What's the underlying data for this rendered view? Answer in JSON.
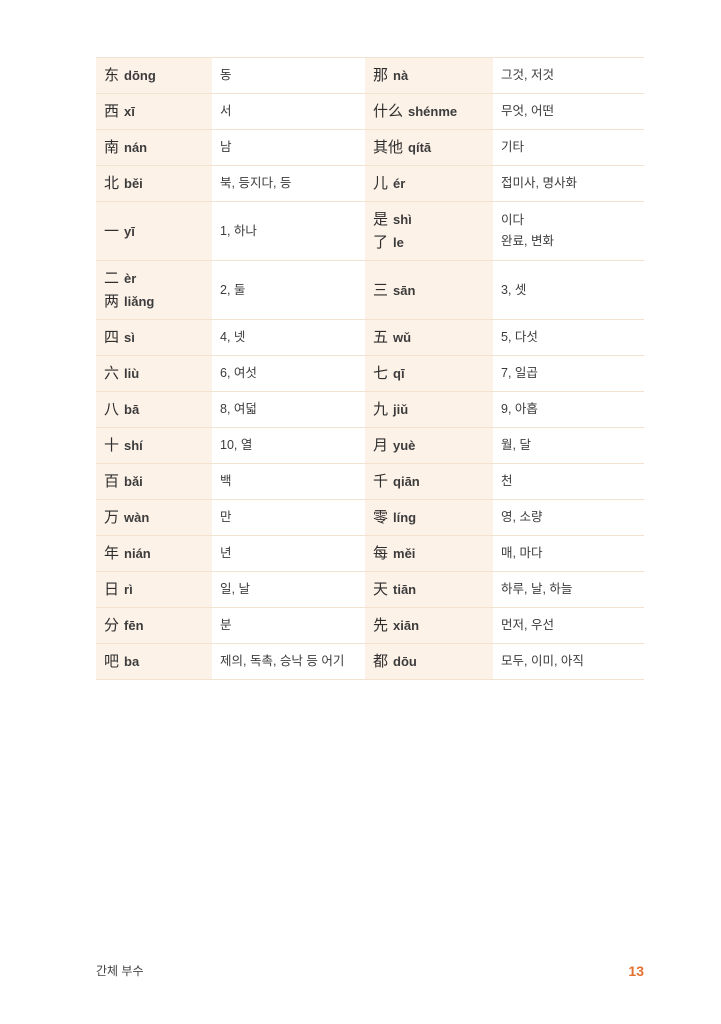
{
  "footer": {
    "left_text": "간체 부수",
    "page_number": "13"
  },
  "colors": {
    "hanzi_cell_bg": "#fdf2e8",
    "row_border": "#f4e2d1",
    "body_text": "#3c3c3c",
    "page_number_accent": "#e2702f"
  },
  "table": {
    "rows": [
      {
        "left": {
          "entries": [
            {
              "han": "东",
              "pinyin": "dōng"
            }
          ],
          "meanings": [
            "동"
          ]
        },
        "right": {
          "entries": [
            {
              "han": "那",
              "pinyin": "nà"
            }
          ],
          "meanings": [
            "그것, 저것"
          ]
        }
      },
      {
        "left": {
          "entries": [
            {
              "han": "西",
              "pinyin": "xī"
            }
          ],
          "meanings": [
            "서"
          ]
        },
        "right": {
          "entries": [
            {
              "han": "什么",
              "pinyin": "shénme"
            }
          ],
          "meanings": [
            "무엇, 어떤"
          ]
        }
      },
      {
        "left": {
          "entries": [
            {
              "han": "南",
              "pinyin": "nán"
            }
          ],
          "meanings": [
            "남"
          ]
        },
        "right": {
          "entries": [
            {
              "han": "其他",
              "pinyin": "qítā"
            }
          ],
          "meanings": [
            "기타"
          ]
        }
      },
      {
        "left": {
          "entries": [
            {
              "han": "北",
              "pinyin": "běi"
            }
          ],
          "meanings": [
            "북, 등지다, 등"
          ]
        },
        "right": {
          "entries": [
            {
              "han": "儿",
              "pinyin": "ér"
            }
          ],
          "meanings": [
            "접미사, 명사화"
          ]
        }
      },
      {
        "left": {
          "entries": [
            {
              "han": "一",
              "pinyin": "yī"
            }
          ],
          "meanings": [
            "1, 하나"
          ]
        },
        "right": {
          "entries": [
            {
              "han": "是",
              "pinyin": "shì"
            },
            {
              "han": "了",
              "pinyin": "le"
            }
          ],
          "meanings": [
            "이다",
            "완료, 변화"
          ]
        }
      },
      {
        "left": {
          "entries": [
            {
              "han": "二",
              "pinyin": "èr"
            },
            {
              "han": "两",
              "pinyin": "liǎng"
            }
          ],
          "meanings": [
            "2, 둘"
          ]
        },
        "right": {
          "entries": [
            {
              "han": "三",
              "pinyin": "sān"
            }
          ],
          "meanings": [
            "3, 셋"
          ]
        }
      },
      {
        "left": {
          "entries": [
            {
              "han": "四",
              "pinyin": "sì"
            }
          ],
          "meanings": [
            "4, 넷"
          ]
        },
        "right": {
          "entries": [
            {
              "han": "五",
              "pinyin": "wǔ"
            }
          ],
          "meanings": [
            "5, 다섯"
          ]
        }
      },
      {
        "left": {
          "entries": [
            {
              "han": "六",
              "pinyin": "liù"
            }
          ],
          "meanings": [
            "6, 여섯"
          ]
        },
        "right": {
          "entries": [
            {
              "han": "七",
              "pinyin": "qī"
            }
          ],
          "meanings": [
            "7, 일곱"
          ]
        }
      },
      {
        "left": {
          "entries": [
            {
              "han": "八",
              "pinyin": "bā"
            }
          ],
          "meanings": [
            "8, 여덟"
          ]
        },
        "right": {
          "entries": [
            {
              "han": "九",
              "pinyin": "jiǔ"
            }
          ],
          "meanings": [
            "9, 아홉"
          ]
        }
      },
      {
        "left": {
          "entries": [
            {
              "han": "十",
              "pinyin": "shí"
            }
          ],
          "meanings": [
            "10, 열"
          ]
        },
        "right": {
          "entries": [
            {
              "han": "月",
              "pinyin": "yuè"
            }
          ],
          "meanings": [
            "월, 달"
          ]
        }
      },
      {
        "left": {
          "entries": [
            {
              "han": "百",
              "pinyin": "bǎi"
            }
          ],
          "meanings": [
            "백"
          ]
        },
        "right": {
          "entries": [
            {
              "han": "千",
              "pinyin": "qiān"
            }
          ],
          "meanings": [
            "천"
          ]
        }
      },
      {
        "left": {
          "entries": [
            {
              "han": "万",
              "pinyin": "wàn"
            }
          ],
          "meanings": [
            "만"
          ]
        },
        "right": {
          "entries": [
            {
              "han": "零",
              "pinyin": "líng"
            }
          ],
          "meanings": [
            "영, 소량"
          ]
        }
      },
      {
        "left": {
          "entries": [
            {
              "han": "年",
              "pinyin": "nián"
            }
          ],
          "meanings": [
            "년"
          ]
        },
        "right": {
          "entries": [
            {
              "han": "每",
              "pinyin": "měi"
            }
          ],
          "meanings": [
            "매, 마다"
          ]
        }
      },
      {
        "left": {
          "entries": [
            {
              "han": "日",
              "pinyin": "rì"
            }
          ],
          "meanings": [
            "일, 날"
          ]
        },
        "right": {
          "entries": [
            {
              "han": "天",
              "pinyin": "tiān"
            }
          ],
          "meanings": [
            "하루, 날, 하늘"
          ]
        }
      },
      {
        "left": {
          "entries": [
            {
              "han": "分",
              "pinyin": "fēn"
            }
          ],
          "meanings": [
            "분"
          ]
        },
        "right": {
          "entries": [
            {
              "han": "先",
              "pinyin": "xiān"
            }
          ],
          "meanings": [
            "먼저, 우선"
          ]
        }
      },
      {
        "left": {
          "entries": [
            {
              "han": "吧",
              "pinyin": "ba"
            }
          ],
          "meanings": [
            "제의, 독촉, 승낙 등 어기"
          ]
        },
        "right": {
          "entries": [
            {
              "han": "都",
              "pinyin": "dōu"
            }
          ],
          "meanings": [
            "모두, 이미, 아직"
          ]
        }
      }
    ]
  }
}
